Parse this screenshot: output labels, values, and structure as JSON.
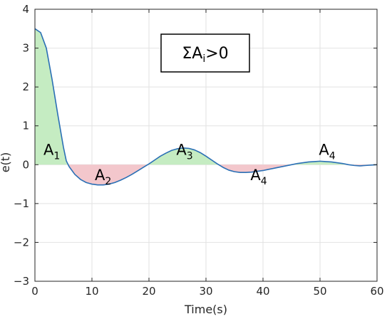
{
  "chart_data": {
    "type": "line",
    "xlabel": "Time(s)",
    "ylabel": "e(t)",
    "xlim": [
      0,
      60
    ],
    "ylim": [
      -3,
      4
    ],
    "xticks": [
      0,
      10,
      20,
      30,
      40,
      50,
      60
    ],
    "yticks": [
      -3,
      -2,
      -1,
      0,
      1,
      2,
      3,
      4
    ],
    "grid": true,
    "colors": {
      "line": "#2a6fb5",
      "positive_fill": "#c5ecc2",
      "negative_fill": "#f3c7cc",
      "grid": "#e2e2e2",
      "axis": "#262626"
    },
    "series": [
      {
        "x": [
          0,
          1,
          2,
          3,
          4,
          5,
          5.5,
          6,
          7,
          8,
          9,
          10,
          11,
          12,
          13,
          14,
          15,
          16,
          17,
          18,
          19,
          20,
          21,
          22,
          23,
          24,
          25,
          26,
          27,
          28,
          29,
          30,
          31,
          32,
          33,
          34,
          35,
          36,
          37,
          38,
          39,
          40,
          41,
          42,
          43,
          44,
          45,
          46,
          47,
          48,
          49,
          50,
          51,
          52,
          53,
          54,
          55,
          56,
          57,
          58,
          59,
          60
        ],
        "y": [
          3.5,
          3.4,
          3.0,
          2.2,
          1.3,
          0.45,
          0.1,
          -0.05,
          -0.25,
          -0.38,
          -0.46,
          -0.5,
          -0.52,
          -0.52,
          -0.5,
          -0.46,
          -0.4,
          -0.33,
          -0.25,
          -0.16,
          -0.07,
          0.02,
          0.12,
          0.22,
          0.3,
          0.37,
          0.41,
          0.43,
          0.42,
          0.38,
          0.31,
          0.22,
          0.12,
          0.02,
          -0.07,
          -0.14,
          -0.18,
          -0.2,
          -0.2,
          -0.19,
          -0.17,
          -0.15,
          -0.12,
          -0.09,
          -0.06,
          -0.03,
          0.0,
          0.03,
          0.05,
          0.07,
          0.08,
          0.09,
          0.08,
          0.07,
          0.05,
          0.03,
          0.0,
          -0.02,
          -0.03,
          -0.02,
          -0.01,
          0.0
        ]
      }
    ],
    "annotations": [
      {
        "base": "A",
        "sub": "1",
        "x": 1.5,
        "y": 0.25
      },
      {
        "base": "A",
        "sub": "2",
        "x": 10.5,
        "y": -0.4
      },
      {
        "base": "A",
        "sub": "3",
        "x": 24.8,
        "y": 0.25
      },
      {
        "base": "A",
        "sub": "4",
        "x": 37.8,
        "y": -0.4
      },
      {
        "base": "A",
        "sub": "4",
        "x": 49.8,
        "y": 0.25
      }
    ],
    "condition_box": {
      "prefix": "ΣA",
      "sub": "i",
      "suffix": ">0"
    }
  }
}
